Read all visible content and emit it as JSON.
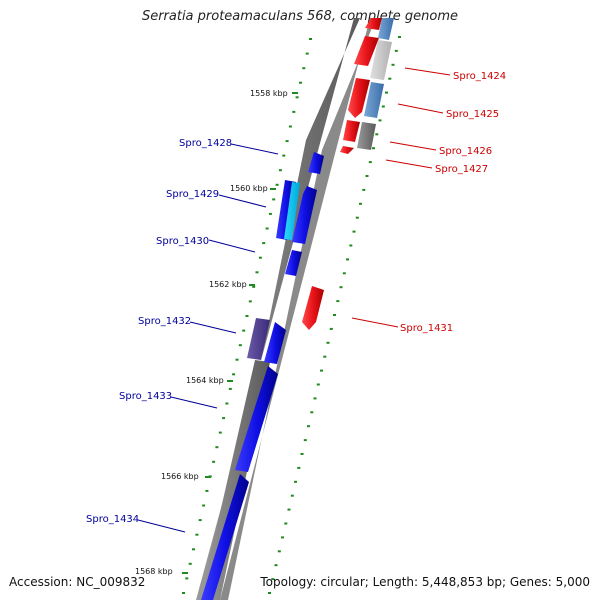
{
  "title": "Serratia proteamaculans 568, complete genome",
  "accession_label": "Accession: NC_009832",
  "info_label": "Topology: circular; Length: 5,448,853 bp; Genes: 5,000",
  "colors": {
    "forward": "#e8141a",
    "reverse": "#1010e6",
    "backbone": "#6a6a6a",
    "tick": "#1f8a1f",
    "forward_label": "#cc0000",
    "reverse_label": "#000099"
  },
  "ticks": [
    "1558 kbp",
    "1560 kbp",
    "1562 kbp",
    "1564 kbp",
    "1566 kbp",
    "1568 kbp"
  ],
  "forward_genes": [
    {
      "name": "Spro_1424"
    },
    {
      "name": "Spro_1425"
    },
    {
      "name": "Spro_1426"
    },
    {
      "name": "Spro_1427"
    },
    {
      "name": "Spro_1431"
    }
  ],
  "reverse_genes": [
    {
      "name": "Spro_1428"
    },
    {
      "name": "Spro_1429"
    },
    {
      "name": "Spro_1430"
    },
    {
      "name": "Spro_1432"
    },
    {
      "name": "Spro_1433"
    },
    {
      "name": "Spro_1434"
    }
  ]
}
